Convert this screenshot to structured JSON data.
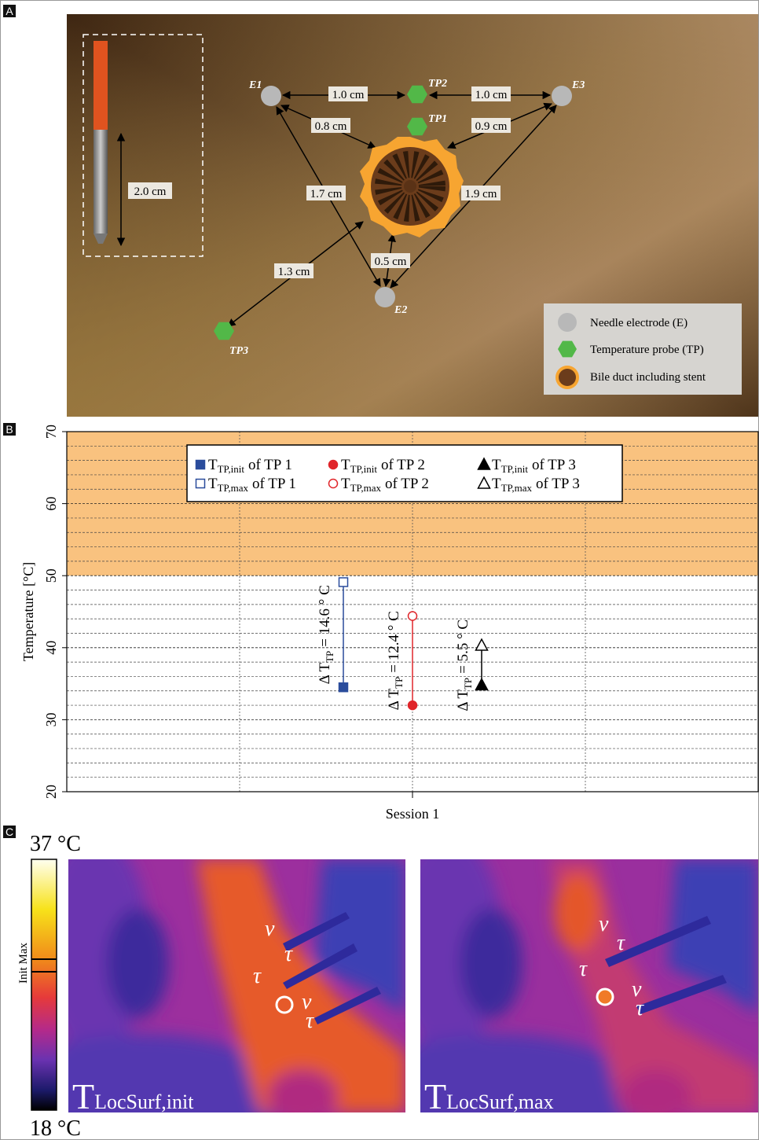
{
  "panel_labels": [
    "A",
    "B",
    "C"
  ],
  "panel_a": {
    "electrodes": [
      "E1",
      "E2",
      "E3"
    ],
    "probes": [
      "TP1",
      "TP2",
      "TP3"
    ],
    "distances": [
      "1.0 cm",
      "1.0 cm",
      "0.8 cm",
      "0.9 cm",
      "1.7 cm",
      "1.9 cm",
      "0.5 cm",
      "1.3 cm"
    ],
    "needle_length": "2.0 cm",
    "legend": [
      "Needle electrode (E)",
      "Temperature probe (TP)",
      "Bile duct including stent"
    ]
  },
  "chart_data": {
    "type": "range-points",
    "ylabel": "Temperature [°C]",
    "ylim": [
      20,
      70
    ],
    "yticks": [
      20,
      30,
      40,
      50,
      60,
      70
    ],
    "minor_yticks": [
      22,
      24,
      26,
      28,
      32,
      34,
      36,
      38,
      42,
      44,
      46,
      48,
      52,
      54,
      56,
      58,
      62,
      64,
      66,
      68
    ],
    "xlim": [
      0,
      4
    ],
    "xticks": [
      {
        "value": 2,
        "label": "Session 1"
      }
    ],
    "xgrid": [
      1,
      2,
      3
    ],
    "highlight": {
      "range": [
        50,
        70
      ],
      "color": "#f9c27f"
    },
    "legend": {
      "main": "T",
      "init_sub": "TP,init",
      "max_sub": "TP,max"
    },
    "delta": {
      "prefix": "Δ T",
      "sub": "TP"
    },
    "series": [
      {
        "probe": "of TP 1",
        "color": "#2a4c9c",
        "marker": "square",
        "x": 1.6,
        "init": 34.5,
        "max": 49.1,
        "delta_text": "= 14.6 ° C"
      },
      {
        "probe": "of TP 2",
        "color": "#e0252a",
        "marker": "circle",
        "x": 2.0,
        "init": 32.0,
        "max": 44.4,
        "delta_text": "= 12.4 ° C"
      },
      {
        "probe": "of TP 3",
        "color": "#000000",
        "marker": "triangle",
        "x": 2.4,
        "init": 34.8,
        "max": 40.3,
        "delta_text": "= 5.5 ° C"
      }
    ]
  },
  "panel_c": {
    "scale_max": "37 °C",
    "scale_min": "18 °C",
    "scale_markers": "Init Max",
    "images": [
      {
        "main": "T",
        "sub": "LocSurf,init"
      },
      {
        "main": "T",
        "sub": "LocSurf,max"
      }
    ],
    "symbols": [
      "ν",
      "τ"
    ]
  }
}
